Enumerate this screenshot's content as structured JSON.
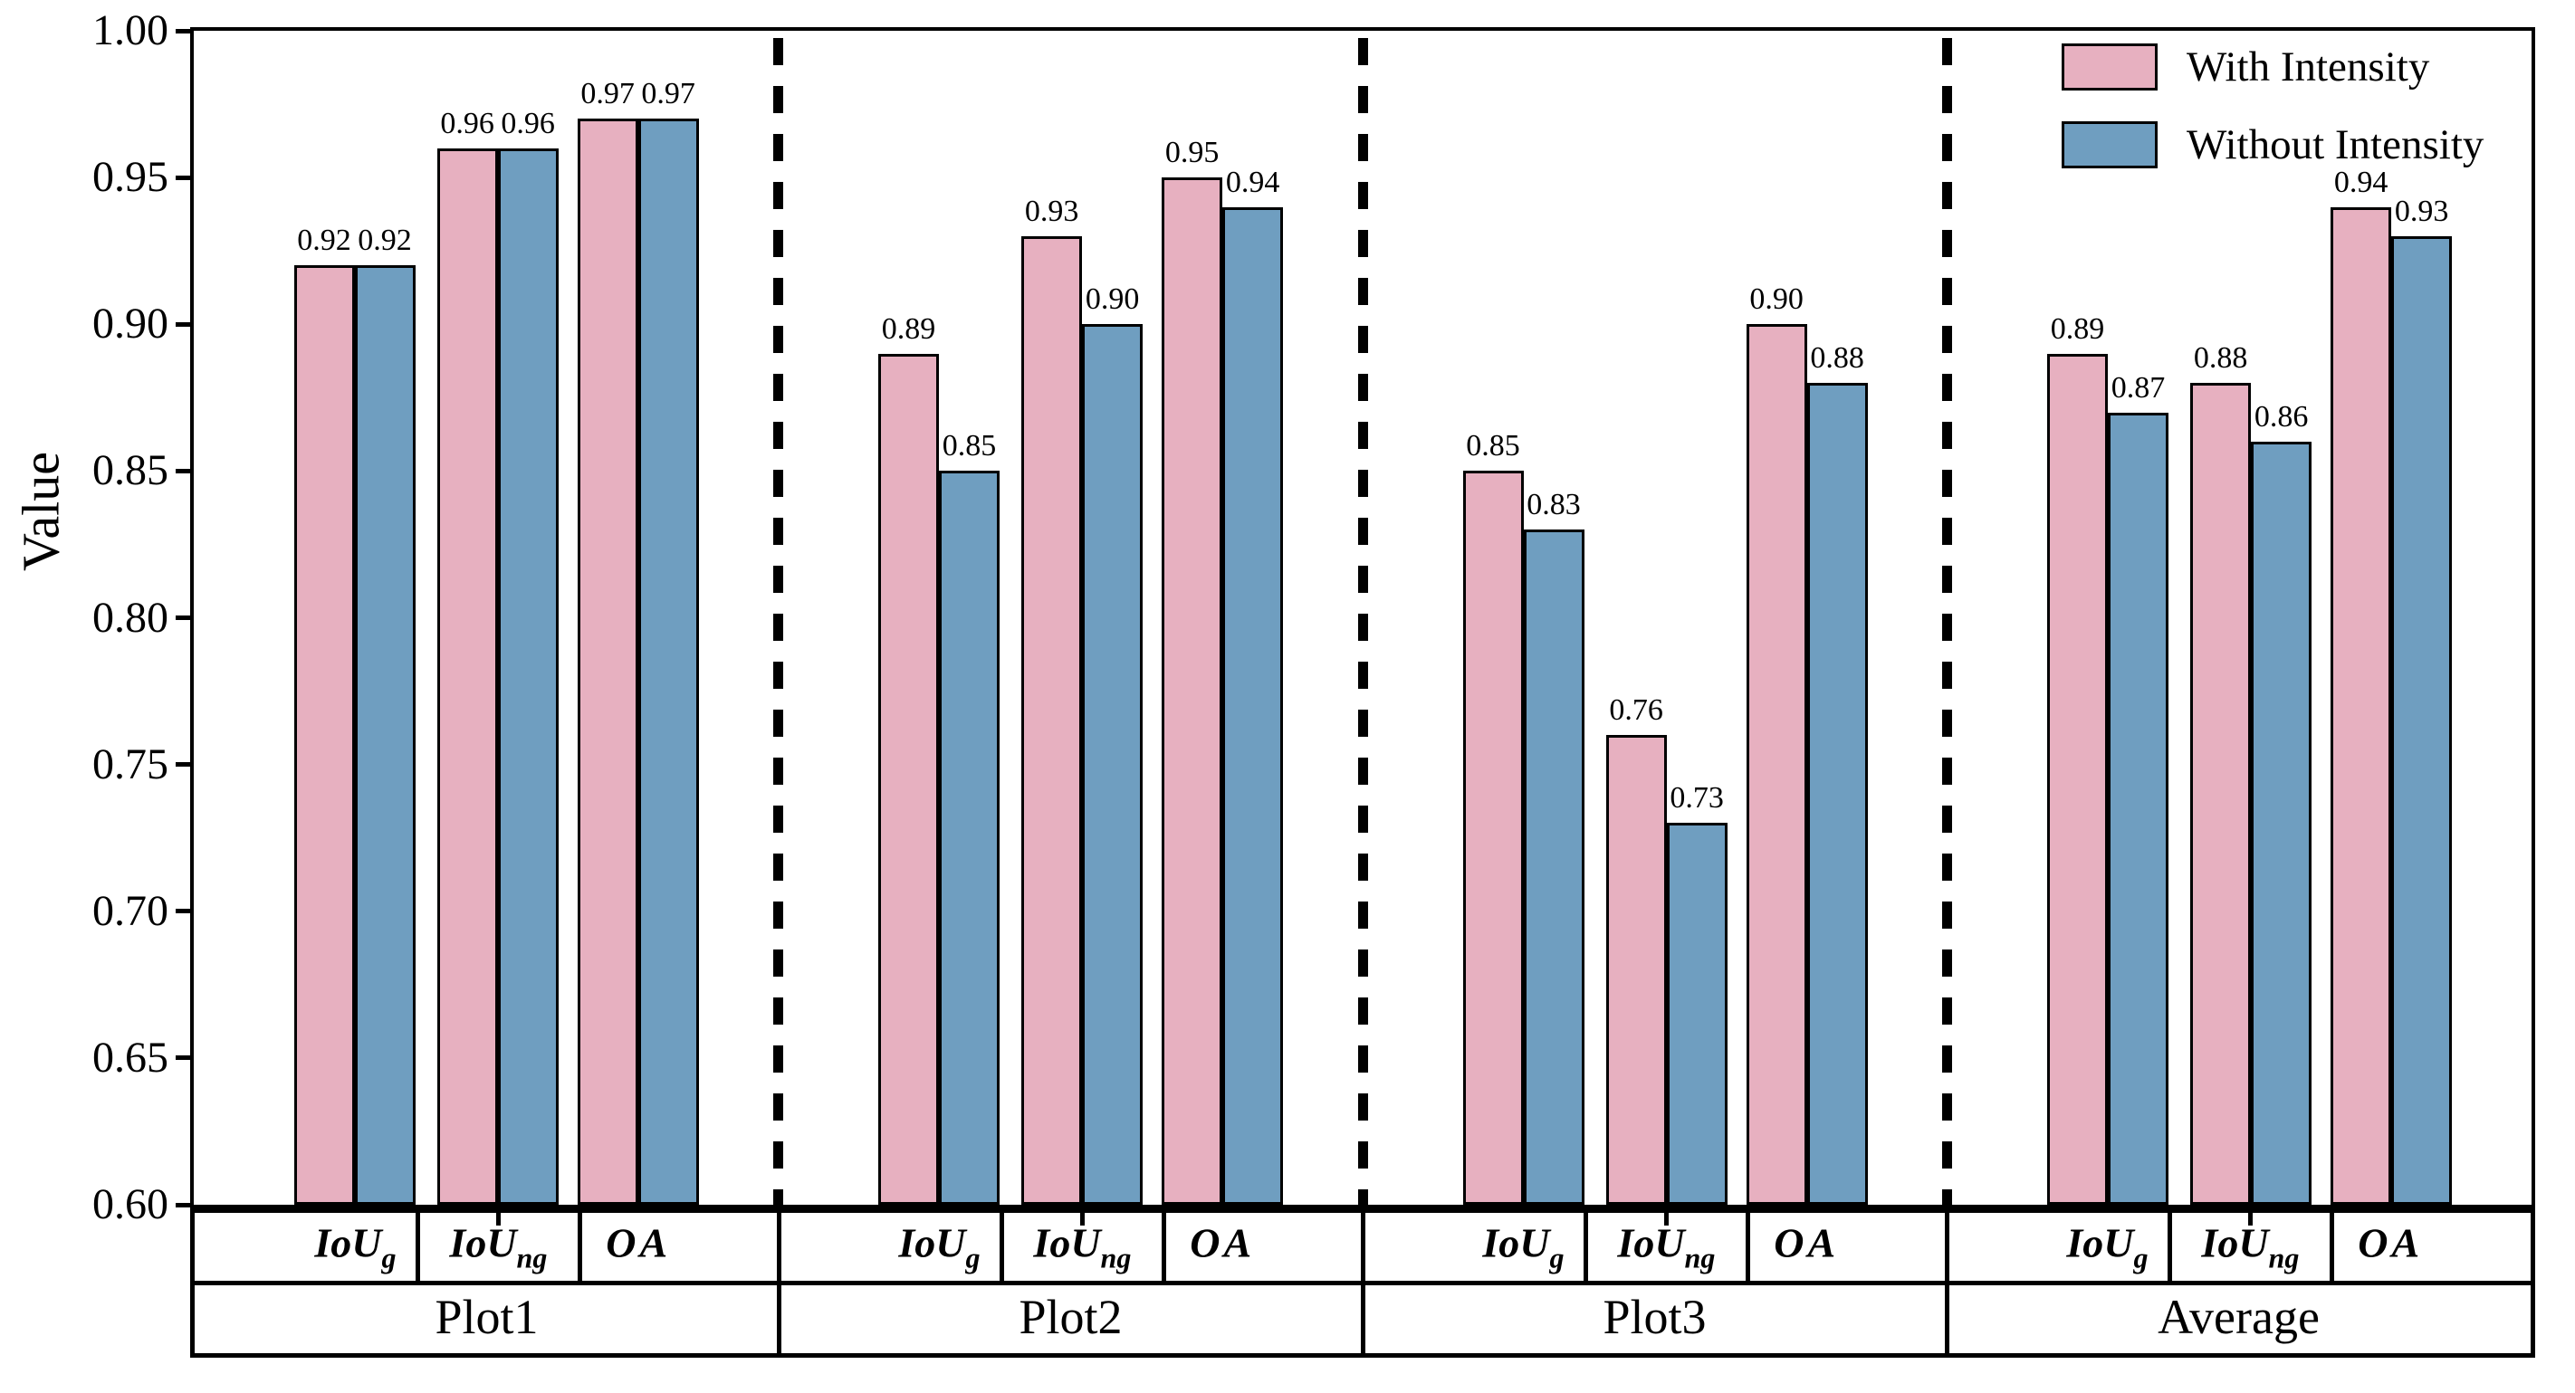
{
  "chart_data": {
    "type": "bar",
    "title": "",
    "ylabel": "Value",
    "ylim": [
      0.6,
      1.0
    ],
    "ytick_step": 0.05,
    "ytick_labels": [
      "1.00",
      "0.95",
      "0.90",
      "0.85",
      "0.80",
      "0.75",
      "0.70",
      "0.65",
      "0.60"
    ],
    "grid": false,
    "bar_edge_color": "#000000",
    "group_separator_style": "dashed",
    "legend": {
      "position": "upper-right",
      "entries": [
        {
          "label": "With Intensity",
          "color": "#E7B0C0"
        },
        {
          "label": "Without Intensity",
          "color": "#6F9EC0"
        }
      ]
    },
    "groups": [
      "Plot1",
      "Plot2",
      "Plot3",
      "Average"
    ],
    "metrics": [
      {
        "base": "IoU",
        "sub": "g"
      },
      {
        "base": "IoU",
        "sub": "ng"
      },
      {
        "base": "OA",
        "sub": ""
      }
    ],
    "series": [
      {
        "name": "With Intensity",
        "color": "#E7B0C0",
        "values": [
          [
            0.92,
            0.96,
            0.97
          ],
          [
            0.89,
            0.93,
            0.95
          ],
          [
            0.85,
            0.76,
            0.9
          ],
          [
            0.89,
            0.88,
            0.94
          ]
        ],
        "labels": [
          [
            "0.92",
            "0.96",
            "0.97"
          ],
          [
            "0.89",
            "0.93",
            "0.95"
          ],
          [
            "0.85",
            "0.76",
            "0.90"
          ],
          [
            "0.89",
            "0.88",
            "0.94"
          ]
        ]
      },
      {
        "name": "Without Intensity",
        "color": "#6F9EC0",
        "values": [
          [
            0.92,
            0.96,
            0.97
          ],
          [
            0.85,
            0.9,
            0.94
          ],
          [
            0.83,
            0.73,
            0.88
          ],
          [
            0.87,
            0.86,
            0.93
          ]
        ],
        "labels": [
          [
            "0.92",
            "0.96",
            "0.97"
          ],
          [
            "0.85",
            "0.90",
            "0.94"
          ],
          [
            "0.83",
            "0.73",
            "0.88"
          ],
          [
            "0.87",
            "0.86",
            "0.93"
          ]
        ]
      }
    ]
  }
}
